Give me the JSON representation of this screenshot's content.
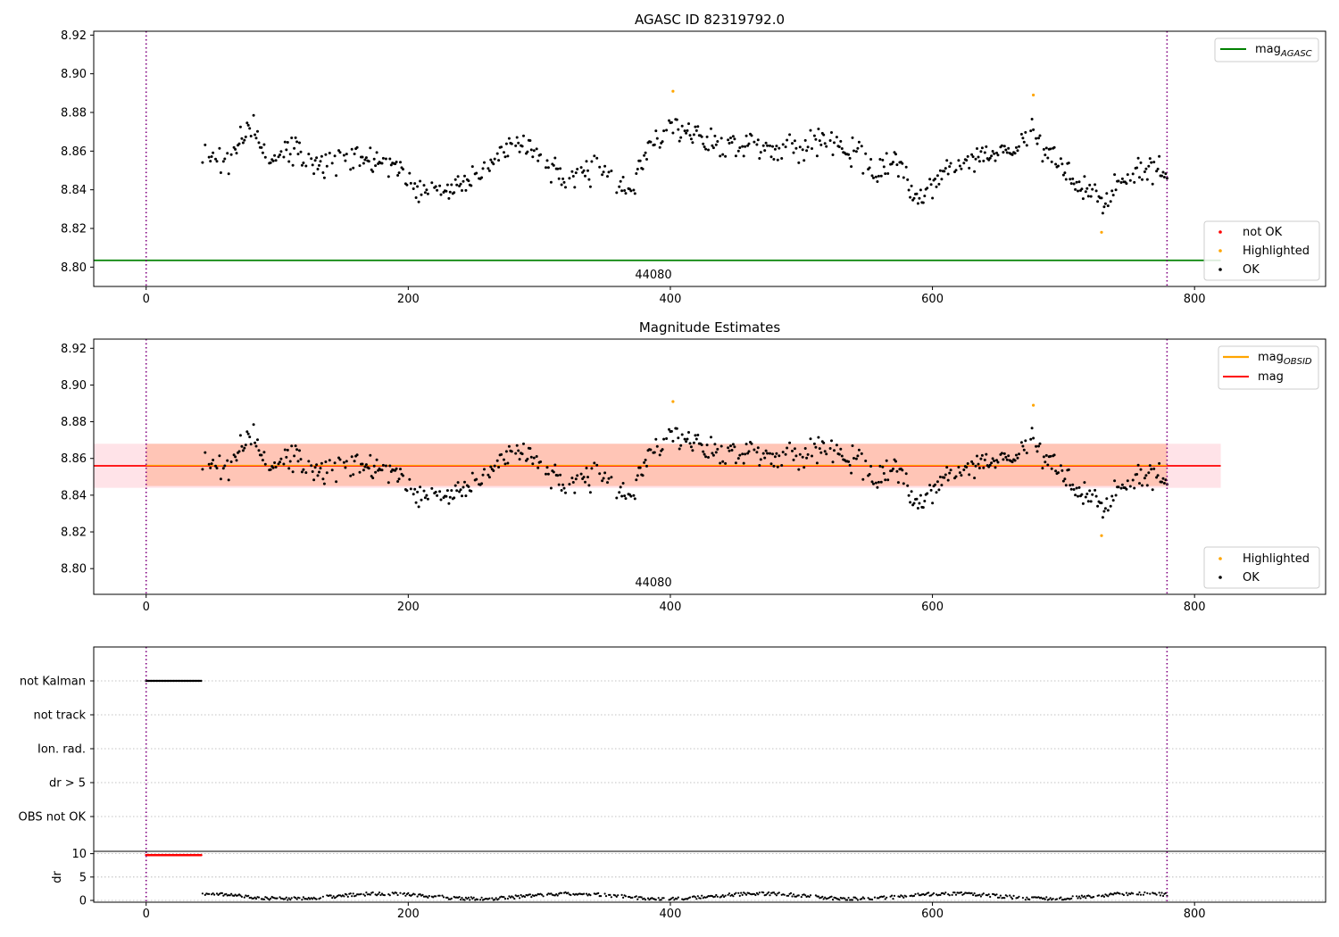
{
  "colors": {
    "ok": "#000000",
    "highlighted": "#ffa500",
    "not_ok": "#ff0000",
    "agasc": "#008000",
    "mag": "#ff0000",
    "mag_obsid": "#ffa500",
    "band_obsid": "#ffa07a",
    "band_mag": "#ffc0cb",
    "obs_boundary": "#800080",
    "grid": "#b0b0b0"
  },
  "chart_data": [
    {
      "type": "scatter",
      "title": "AGASC ID 82319792.0",
      "xlim": [
        -40,
        900
      ],
      "ylim": [
        8.79,
        8.922
      ],
      "xticks": [
        0,
        200,
        400,
        600,
        800
      ],
      "yticks": [
        "8.80",
        "8.82",
        "8.84",
        "8.86",
        "8.88",
        "8.90",
        "8.92"
      ],
      "obs_label": "44080",
      "obs_boundaries": [
        0,
        779
      ],
      "mag_agasc": 8.8035,
      "legend_top": [
        {
          "label": "mag",
          "sub": "AGASC",
          "kind": "line",
          "color": "#008000"
        }
      ],
      "legend_bottom": [
        {
          "label": "not OK",
          "kind": "dot",
          "color": "#ff0000"
        },
        {
          "label": "Highlighted",
          "kind": "dot",
          "color": "#ffa500"
        },
        {
          "label": "OK",
          "kind": "dot",
          "color": "#000000"
        }
      ],
      "highlighted": [
        [
          402,
          8.891
        ],
        [
          677,
          8.889
        ],
        [
          729,
          8.818
        ]
      ]
    },
    {
      "type": "scatter",
      "title": "Magnitude Estimates",
      "xlim": [
        -40,
        900
      ],
      "ylim": [
        8.786,
        8.925
      ],
      "xticks": [
        0,
        200,
        400,
        600,
        800
      ],
      "yticks": [
        "8.80",
        "8.82",
        "8.84",
        "8.86",
        "8.88",
        "8.90",
        "8.92"
      ],
      "obs_label": "44080",
      "obs_boundaries": [
        0,
        779
      ],
      "mag": 8.856,
      "mag_band": [
        8.844,
        8.868
      ],
      "mag_obsid": 8.856,
      "obsid_band": [
        8.845,
        8.868
      ],
      "legend_top": [
        {
          "label": "mag",
          "sub": "OBSID",
          "kind": "line",
          "color": "#ffa500"
        },
        {
          "label": "mag",
          "kind": "line",
          "color": "#ff0000"
        }
      ],
      "legend_bottom": [
        {
          "label": "Highlighted",
          "kind": "dot",
          "color": "#ffa500"
        },
        {
          "label": "OK",
          "kind": "dot",
          "color": "#000000"
        }
      ],
      "highlighted": [
        [
          402,
          8.891
        ],
        [
          677,
          8.889
        ],
        [
          729,
          8.818
        ]
      ]
    },
    {
      "type": "scatter",
      "title": "",
      "xlim": [
        -40,
        900
      ],
      "categories": [
        "not Kalman",
        "not track",
        "Ion. rad.",
        "dr > 5",
        "OBS not OK"
      ],
      "flags": {
        "not Kalman": [
          0,
          42
        ]
      },
      "obs_boundaries": [
        0,
        779
      ],
      "dr_ylim": [
        0,
        10.5
      ],
      "dr_yticks": [
        "0",
        "5",
        "10"
      ],
      "dr_ylabel": "dr",
      "dr_red_range": [
        0,
        42
      ],
      "dr_red_value": 9.7,
      "xticks": [
        0,
        200,
        400,
        600,
        800
      ]
    }
  ]
}
